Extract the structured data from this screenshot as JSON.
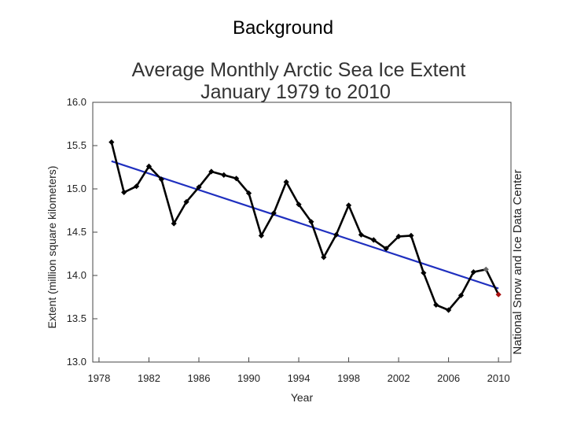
{
  "slide": {
    "title": "Background"
  },
  "chart_data": {
    "type": "line",
    "title": "Average Monthly Arctic Sea Ice Extent",
    "subtitle": "January 1979 to 2010",
    "xlabel": "Year",
    "ylabel": "Extent (million square kilometers)",
    "credit": "National Snow and Ice Data Center",
    "xlim": [
      1977.5,
      2011
    ],
    "ylim": [
      13.0,
      16.0
    ],
    "xticks": [
      "1978",
      "1982",
      "1986",
      "1990",
      "1994",
      "1998",
      "2002",
      "2006",
      "2010"
    ],
    "yticks": [
      "13.0",
      "13.5",
      "14.0",
      "14.5",
      "15.0",
      "15.5",
      "16.0"
    ],
    "series": [
      {
        "name": "Extent",
        "color": "#000000",
        "x": [
          1979,
          1980,
          1981,
          1982,
          1983,
          1984,
          1985,
          1986,
          1987,
          1988,
          1989,
          1990,
          1991,
          1992,
          1993,
          1994,
          1995,
          1996,
          1997,
          1998,
          1999,
          2000,
          2001,
          2002,
          2003,
          2004,
          2005,
          2006,
          2007,
          2008,
          2009,
          2010
        ],
        "y": [
          15.54,
          14.96,
          15.03,
          15.26,
          15.11,
          14.6,
          14.85,
          15.02,
          15.2,
          15.16,
          15.12,
          14.95,
          14.46,
          14.72,
          15.08,
          14.82,
          14.62,
          14.21,
          14.47,
          14.81,
          14.47,
          14.41,
          14.31,
          14.45,
          14.46,
          14.03,
          13.66,
          13.6,
          13.77,
          14.04,
          14.07,
          13.78
        ],
        "highlight": [
          {
            "x": 2009,
            "color": "#666666"
          },
          {
            "x": 2010,
            "color": "#aa1111"
          }
        ]
      },
      {
        "name": "Trend",
        "type": "trendline",
        "color": "#1f2fbf",
        "x": [
          1979,
          2010
        ],
        "y": [
          15.32,
          13.85
        ]
      }
    ]
  }
}
